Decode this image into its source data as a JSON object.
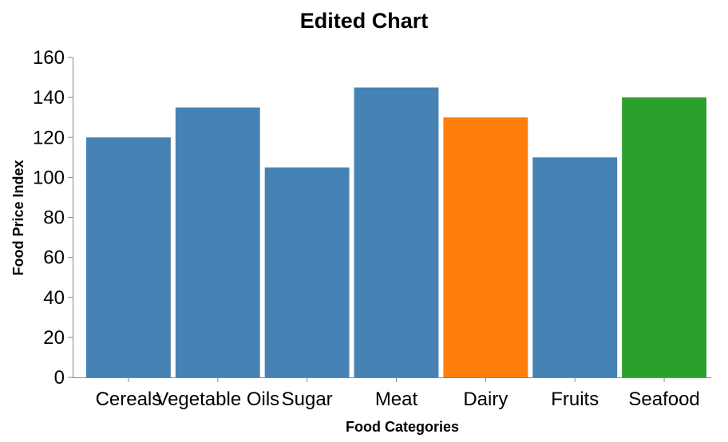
{
  "chart_data": {
    "type": "bar",
    "title": "Edited Chart",
    "xlabel": "Food Categories",
    "ylabel": "Food Price Index",
    "categories": [
      "Cereals",
      "Vegetable Oils",
      "Sugar",
      "Meat",
      "Dairy",
      "Fruits",
      "Seafood"
    ],
    "values": [
      120,
      135,
      105,
      145,
      130,
      110,
      140
    ],
    "bar_colors": [
      "#4682b4",
      "#4682b4",
      "#4682b4",
      "#4682b4",
      "#ff7f0e",
      "#4682b4",
      "#2ca02c"
    ],
    "ylim": [
      0,
      160
    ],
    "yticks": [
      0,
      20,
      40,
      60,
      80,
      100,
      120,
      140,
      160
    ],
    "grid": false,
    "legend": "none"
  }
}
